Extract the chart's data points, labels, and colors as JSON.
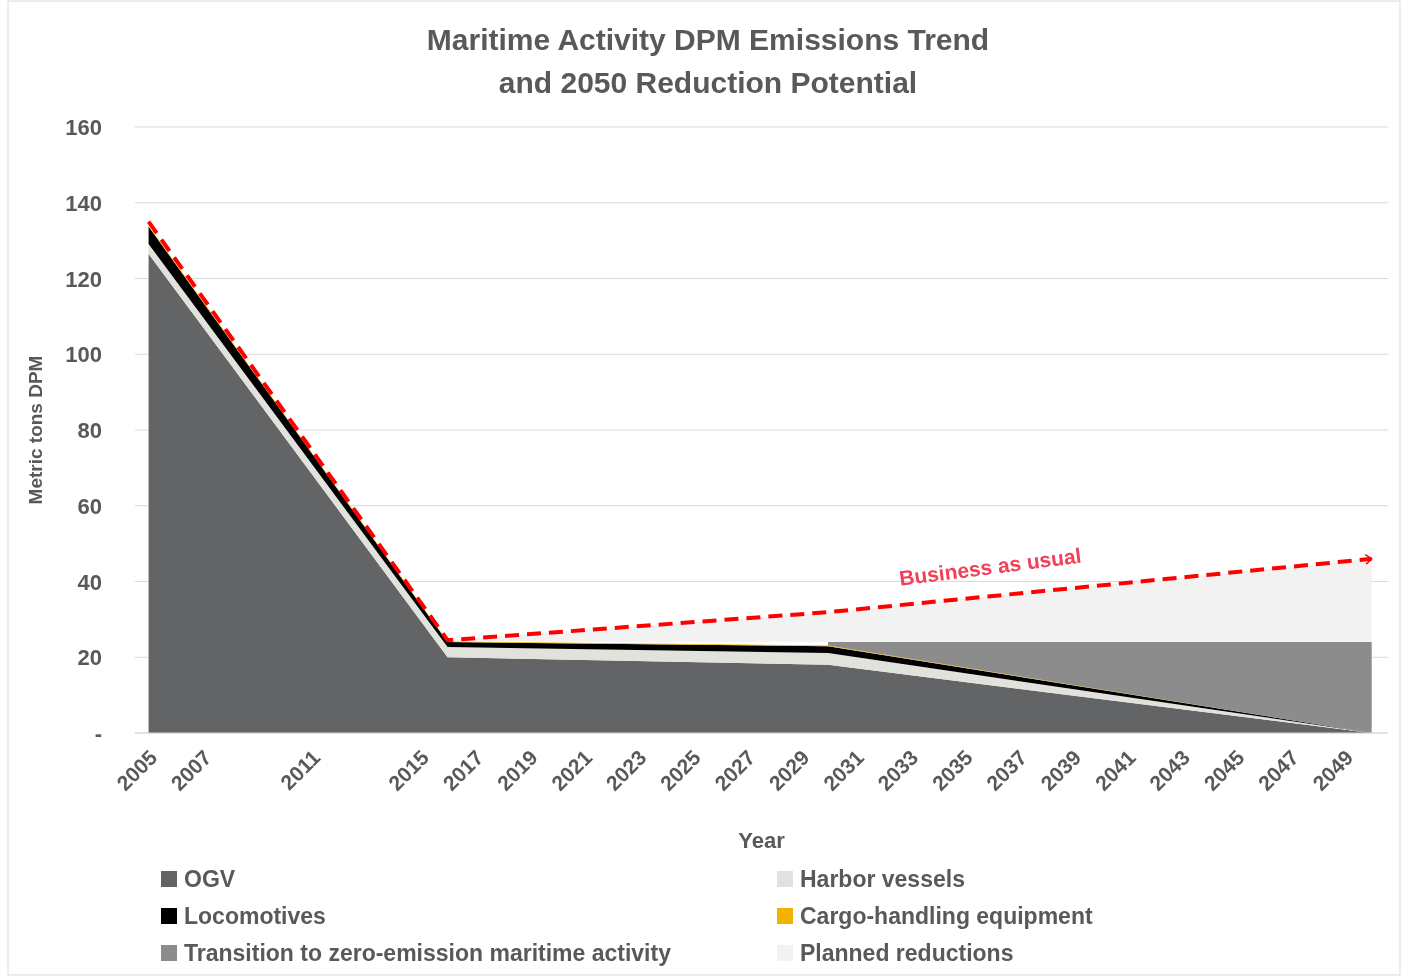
{
  "chart_data": {
    "type": "area",
    "title": "Maritime Activity DPM Emissions Trend\nand 2050 Reduction Potential",
    "xlabel": "Year",
    "ylabel": "Metric tons DPM",
    "x": [
      2005,
      2016,
      2030,
      2050
    ],
    "xlim": [
      2004.5,
      2050.6
    ],
    "xticks": [
      2005,
      2007,
      2011,
      2015,
      2017,
      2019,
      2021,
      2023,
      2025,
      2027,
      2029,
      2031,
      2033,
      2035,
      2037,
      2039,
      2041,
      2043,
      2045,
      2047,
      2049
    ],
    "ylim": [
      0,
      160
    ],
    "yticks": [
      {
        "value": 0,
        "label": "-"
      },
      20,
      40,
      60,
      80,
      100,
      120,
      140,
      160
    ],
    "stacked": true,
    "grid": "y",
    "legend": "bottom",
    "series": [
      {
        "name": "OGV",
        "color": "#636466",
        "values": [
          126.5,
          20,
          18,
          0
        ]
      },
      {
        "name": "Harbor vessels",
        "color": "#e2e2dc",
        "values": [
          2.6,
          2.7,
          3.1,
          0
        ]
      },
      {
        "name": "Locomotives",
        "color": "#000000",
        "values": [
          4.6,
          1.3,
          1.8,
          0
        ]
      },
      {
        "name": "Cargo-handling equipment",
        "color": "#f0b400",
        "values": [
          0.3,
          0.2,
          0.2,
          0
        ]
      },
      {
        "name": "Transition to zero-emission maritime activity",
        "color": "#8c8c8c",
        "values": [
          null,
          null,
          0.9,
          24
        ]
      },
      {
        "name": "Planned reductions",
        "color": "#f2f2f2",
        "values": [
          null,
          0.3,
          7.9,
          22
        ]
      },
      {
        "name": "Business as usual",
        "type": "line",
        "color": "#ff0000",
        "line_style": "dashed",
        "values": [
          135,
          24.5,
          31.9,
          46
        ]
      }
    ]
  }
}
